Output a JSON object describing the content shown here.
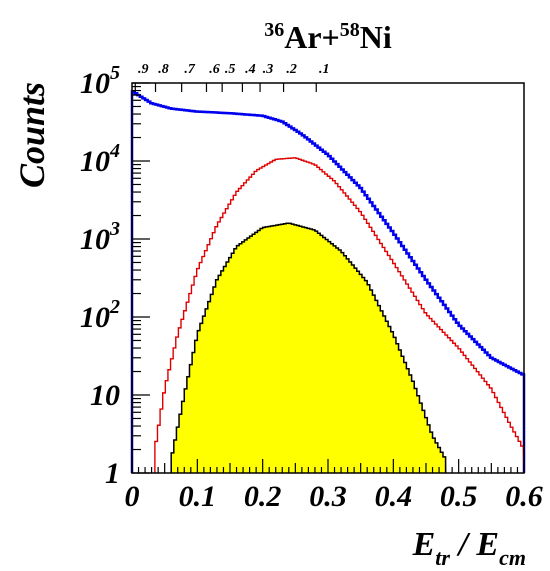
{
  "chart_data": {
    "type": "histogram",
    "title": {
      "parts": [
        {
          "text": "36",
          "sup": true
        },
        {
          "text": "Ar+",
          "sup": false
        },
        {
          "text": "58",
          "sup": true
        },
        {
          "text": "Ni",
          "sup": false
        }
      ]
    },
    "ylabel": "Counts",
    "xlabel": {
      "main": "E",
      "sub1": "tr",
      "sep": " / ",
      "main2": "E",
      "sub2": "cm"
    },
    "xlim": [
      0,
      0.6
    ],
    "ylim": [
      1,
      100000
    ],
    "yscale": "log",
    "x_ticks": [
      "0",
      "0.1",
      "0.2",
      "0.3",
      "0.4",
      "0.5",
      "0.6"
    ],
    "y_ticks": [
      {
        "value": 1,
        "base": "1",
        "exp": ""
      },
      {
        "value": 10,
        "base": "10",
        "exp": ""
      },
      {
        "value": 100,
        "base": "10",
        "exp": "2"
      },
      {
        "value": 1000,
        "base": "10",
        "exp": "3"
      },
      {
        "value": 10000,
        "base": "10",
        "exp": "4"
      },
      {
        "value": 100000,
        "base": "10",
        "exp": "5"
      }
    ],
    "top_axis_ticks": [
      {
        "label": ".9",
        "x": 0.005
      },
      {
        "label": ".8",
        "x": 0.036
      },
      {
        "label": ".7",
        "x": 0.076
      },
      {
        "label": ".6",
        "x": 0.114
      },
      {
        "label": ".5",
        "x": 0.138
      },
      {
        "label": ".4",
        "x": 0.169
      },
      {
        "label": ".3",
        "x": 0.196
      },
      {
        "label": ".2",
        "x": 0.232
      },
      {
        "label": ".1",
        "x": 0.282
      }
    ],
    "grid": false,
    "colors": {
      "blue": "#0000ee",
      "red": "#e00000",
      "black": "#000000",
      "fill": "#ffff00"
    },
    "series": [
      {
        "color": "blue",
        "style": "step",
        "points": [
          [
            0.0,
            80000
          ],
          [
            0.01,
            70000
          ],
          [
            0.03,
            55000
          ],
          [
            0.06,
            47000
          ],
          [
            0.1,
            43000
          ],
          [
            0.15,
            41000
          ],
          [
            0.2,
            38000
          ],
          [
            0.23,
            32000
          ],
          [
            0.26,
            22000
          ],
          [
            0.3,
            12000
          ],
          [
            0.35,
            4500
          ],
          [
            0.4,
            1200
          ],
          [
            0.45,
            300
          ],
          [
            0.5,
            80
          ],
          [
            0.55,
            30
          ],
          [
            0.6,
            18
          ]
        ]
      },
      {
        "color": "red",
        "style": "step",
        "points": [
          [
            0.035,
            2
          ],
          [
            0.05,
            12
          ],
          [
            0.07,
            60
          ],
          [
            0.1,
            400
          ],
          [
            0.13,
            1500
          ],
          [
            0.16,
            4000
          ],
          [
            0.19,
            7500
          ],
          [
            0.22,
            10500
          ],
          [
            0.25,
            11000
          ],
          [
            0.28,
            9000
          ],
          [
            0.31,
            5500
          ],
          [
            0.35,
            2200
          ],
          [
            0.4,
            500
          ],
          [
            0.45,
            110
          ],
          [
            0.5,
            40
          ],
          [
            0.55,
            12
          ],
          [
            0.58,
            4
          ],
          [
            0.6,
            2
          ]
        ]
      },
      {
        "color": "black",
        "style": "filled-step",
        "fill": "fill",
        "points": [
          [
            0.06,
            1.5
          ],
          [
            0.08,
            10
          ],
          [
            0.1,
            60
          ],
          [
            0.13,
            300
          ],
          [
            0.16,
            800
          ],
          [
            0.2,
            1400
          ],
          [
            0.24,
            1600
          ],
          [
            0.28,
            1300
          ],
          [
            0.32,
            700
          ],
          [
            0.36,
            280
          ],
          [
            0.4,
            60
          ],
          [
            0.43,
            15
          ],
          [
            0.46,
            3
          ],
          [
            0.48,
            1.5
          ]
        ]
      }
    ]
  }
}
